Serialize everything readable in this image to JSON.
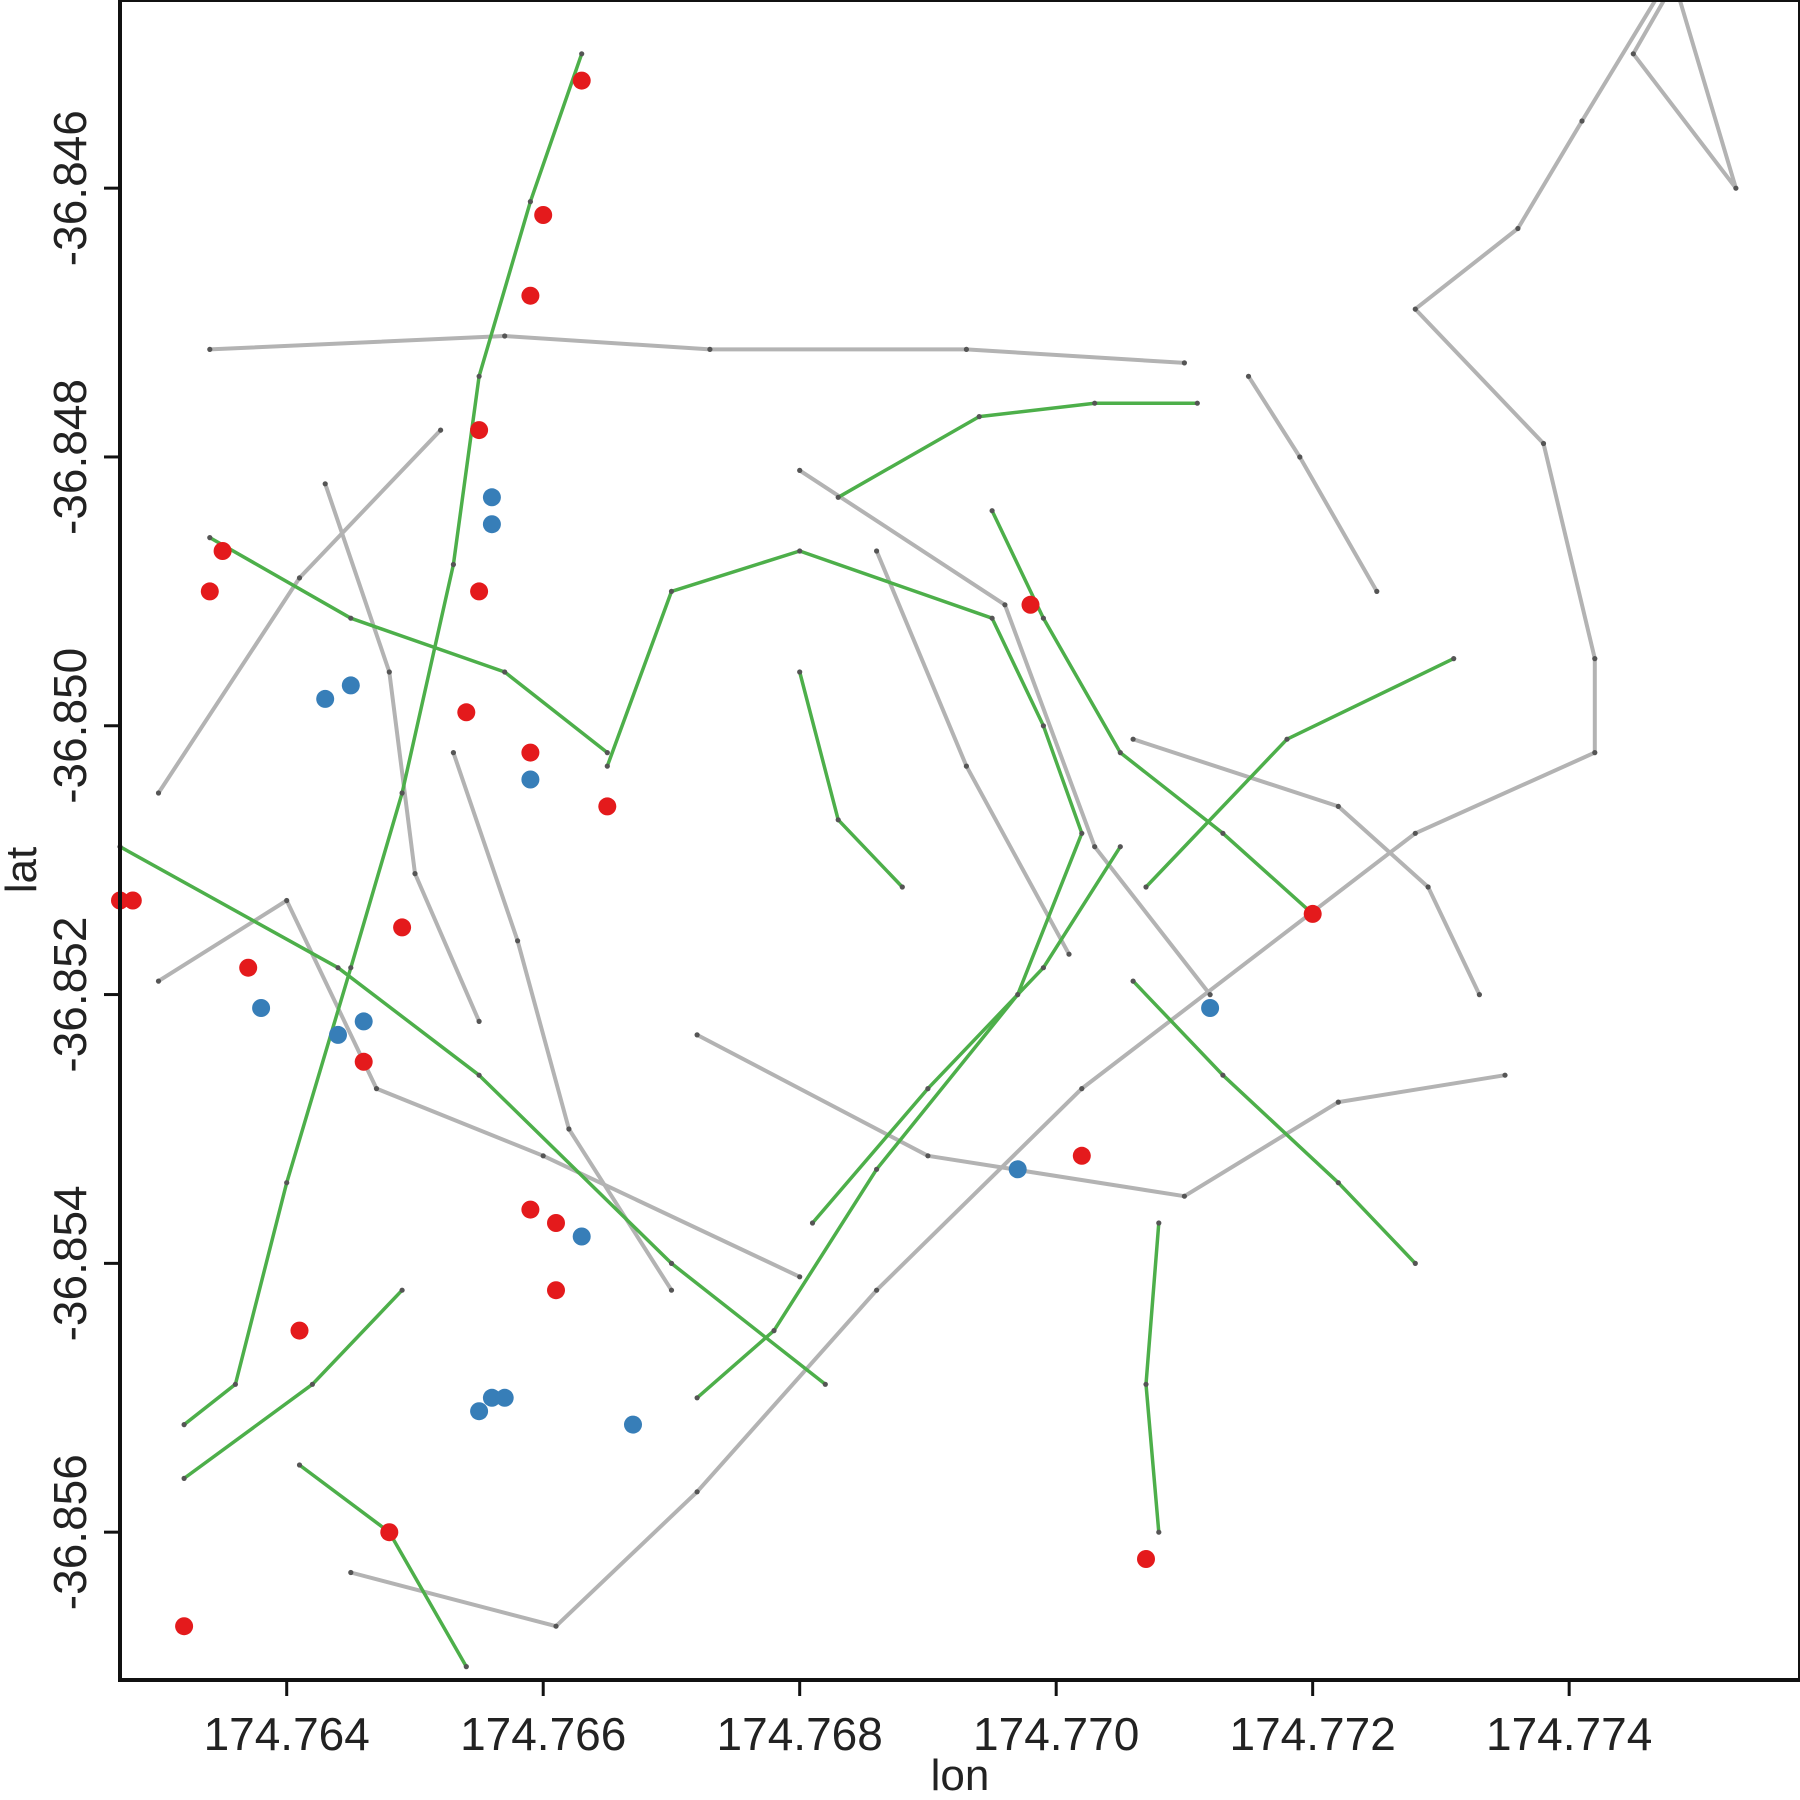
{
  "chart_data": {
    "type": "scatter",
    "title": "",
    "xlabel": "lon",
    "ylabel": "lat",
    "xlim": [
      174.7627,
      174.7758
    ],
    "ylim": [
      -36.8571,
      -36.8446
    ],
    "xticks": [
      "174.764",
      "174.766",
      "174.768",
      "174.770",
      "174.772",
      "174.774"
    ],
    "yticks": [
      "-36.846",
      "-36.848",
      "-36.850",
      "-36.852",
      "-36.854",
      "-36.856"
    ],
    "grid": false,
    "colors": {
      "road_network": "#b3b3b3",
      "route_network": "#4daf4a",
      "node": "#555555",
      "red_points": "#e41a1c",
      "blue_points": "#377eb8"
    },
    "gray_lines": [
      [
        [
          174.7645,
          -36.8563
        ],
        [
          174.7661,
          -36.8567
        ],
        [
          174.7672,
          -36.8557
        ],
        [
          174.7686,
          -36.8542
        ],
        [
          174.7702,
          -36.8527
        ],
        [
          174.7728,
          -36.8508
        ],
        [
          174.7742,
          -36.8502
        ],
        [
          174.7742,
          -36.8495
        ],
        [
          174.7738,
          -36.8479
        ],
        [
          174.7728,
          -36.8469
        ],
        [
          174.7736,
          -36.8463
        ],
        [
          174.7741,
          -36.8455
        ],
        [
          174.7748,
          -36.8444
        ],
        [
          174.7753,
          -36.846
        ],
        [
          174.7745,
          -36.845
        ],
        [
          174.7748,
          -36.8445
        ]
      ],
      [
        [
          174.7634,
          -36.8472
        ],
        [
          174.7657,
          -36.8471
        ],
        [
          174.7673,
          -36.8472
        ],
        [
          174.7693,
          -36.8472
        ],
        [
          174.771,
          -36.8473
        ]
      ],
      [
        [
          174.763,
          -36.8505
        ],
        [
          174.7641,
          -36.8489
        ],
        [
          174.7652,
          -36.8478
        ]
      ],
      [
        [
          174.763,
          -36.8519
        ],
        [
          174.764,
          -36.8513
        ],
        [
          174.7647,
          -36.8527
        ],
        [
          174.766,
          -36.8532
        ],
        [
          174.768,
          -36.8541
        ]
      ],
      [
        [
          174.7672,
          -36.8523
        ],
        [
          174.769,
          -36.8532
        ],
        [
          174.771,
          -36.8535
        ],
        [
          174.7722,
          -36.8528
        ],
        [
          174.7735,
          -36.8526
        ]
      ],
      [
        [
          174.7706,
          -36.8501
        ],
        [
          174.7722,
          -36.8506
        ],
        [
          174.7729,
          -36.8512
        ],
        [
          174.7733,
          -36.852
        ]
      ],
      [
        [
          174.768,
          -36.8481
        ],
        [
          174.7696,
          -36.8491
        ],
        [
          174.7703,
          -36.8509
        ],
        [
          174.7712,
          -36.852
        ]
      ],
      [
        [
          174.7715,
          -36.8474
        ],
        [
          174.7719,
          -36.848
        ],
        [
          174.7725,
          -36.849
        ]
      ],
      [
        [
          174.7653,
          -36.8502
        ],
        [
          174.7658,
          -36.8516
        ],
        [
          174.7662,
          -36.853
        ],
        [
          174.767,
          -36.8542
        ]
      ],
      [
        [
          174.7643,
          -36.8482
        ],
        [
          174.7648,
          -36.8496
        ],
        [
          174.765,
          -36.8511
        ],
        [
          174.7655,
          -36.8522
        ]
      ],
      [
        [
          174.7686,
          -36.8487
        ],
        [
          174.7693,
          -36.8503
        ],
        [
          174.7701,
          -36.8517
        ]
      ]
    ],
    "green_lines": [
      [
        [
          174.7663,
          -36.845
        ],
        [
          174.7659,
          -36.8461
        ],
        [
          174.7655,
          -36.8474
        ],
        [
          174.7653,
          -36.8488
        ],
        [
          174.7649,
          -36.8505
        ],
        [
          174.7645,
          -36.8518
        ],
        [
          174.764,
          -36.8534
        ],
        [
          174.7636,
          -36.8549
        ],
        [
          174.7632,
          -36.8552
        ]
      ],
      [
        [
          174.7634,
          -36.8486
        ],
        [
          174.7645,
          -36.8492
        ],
        [
          174.7657,
          -36.8496
        ],
        [
          174.7665,
          -36.8502
        ]
      ],
      [
        [
          174.7627,
          -36.8509
        ],
        [
          174.7644,
          -36.8518
        ],
        [
          174.7655,
          -36.8526
        ],
        [
          174.767,
          -36.854
        ],
        [
          174.7682,
          -36.8549
        ]
      ],
      [
        [
          174.7665,
          -36.8503
        ],
        [
          174.767,
          -36.849
        ],
        [
          174.768,
          -36.8487
        ],
        [
          174.7695,
          -36.8492
        ],
        [
          174.7699,
          -36.85
        ],
        [
          174.7702,
          -36.8508
        ],
        [
          174.7697,
          -36.852
        ],
        [
          174.7686,
          -36.8533
        ],
        [
          174.7678,
          -36.8545
        ],
        [
          174.7672,
          -36.855
        ]
      ],
      [
        [
          174.768,
          -36.8496
        ],
        [
          174.7683,
          -36.8507
        ],
        [
          174.7688,
          -36.8512
        ]
      ],
      [
        [
          174.7695,
          -36.8484
        ],
        [
          174.7699,
          -36.8492
        ],
        [
          174.7705,
          -36.8502
        ],
        [
          174.7713,
          -36.8508
        ],
        [
          174.772,
          -36.8514
        ]
      ],
      [
        [
          174.7706,
          -36.8519
        ],
        [
          174.7713,
          -36.8526
        ],
        [
          174.7722,
          -36.8534
        ],
        [
          174.7728,
          -36.854
        ]
      ],
      [
        [
          174.7708,
          -36.8537
        ],
        [
          174.7707,
          -36.8549
        ],
        [
          174.7708,
          -36.856
        ]
      ],
      [
        [
          174.7683,
          -36.8483
        ],
        [
          174.7694,
          -36.8477
        ],
        [
          174.7703,
          -36.8476
        ],
        [
          174.7711,
          -36.8476
        ]
      ],
      [
        [
          174.7707,
          -36.8512
        ],
        [
          174.7718,
          -36.8501
        ],
        [
          174.7731,
          -36.8495
        ]
      ],
      [
        [
          174.7641,
          -36.8555
        ],
        [
          174.7648,
          -36.856
        ],
        [
          174.7654,
          -36.857
        ]
      ],
      [
        [
          174.7632,
          -36.8556
        ],
        [
          174.7642,
          -36.8549
        ],
        [
          174.7649,
          -36.8542
        ]
      ],
      [
        [
          174.7681,
          -36.8537
        ],
        [
          174.769,
          -36.8527
        ],
        [
          174.7699,
          -36.8518
        ],
        [
          174.7705,
          -36.8509
        ]
      ]
    ],
    "red_points": {
      "x": [
        174.7663,
        174.766,
        174.7659,
        174.7655,
        174.7635,
        174.7634,
        174.7655,
        174.7654,
        174.7659,
        174.7665,
        174.7628,
        174.7627,
        174.7649,
        174.7637,
        174.7646,
        174.7659,
        174.7661,
        174.7661,
        174.7641,
        174.7648,
        174.7632,
        174.7698,
        174.772,
        174.7702,
        174.7707
      ],
      "y": [
        -36.8452,
        -36.8462,
        -36.8468,
        -36.8478,
        -36.8487,
        -36.849,
        -36.849,
        -36.8499,
        -36.8502,
        -36.8506,
        -36.8513,
        -36.8513,
        -36.8515,
        -36.8518,
        -36.8525,
        -36.8536,
        -36.8537,
        -36.8542,
        -36.8545,
        -36.856,
        -36.8567,
        -36.8491,
        -36.8514,
        -36.8532,
        -36.8562
      ]
    },
    "blue_points": {
      "x": [
        174.7656,
        174.7656,
        174.7643,
        174.7645,
        174.7659,
        174.7638,
        174.7644,
        174.7646,
        174.7663,
        174.7656,
        174.7657,
        174.7655,
        174.7667,
        174.7697,
        174.7712
      ],
      "y": [
        -36.8483,
        -36.8485,
        -36.8498,
        -36.8497,
        -36.8504,
        -36.8521,
        -36.8523,
        -36.8522,
        -36.8538,
        -36.855,
        -36.855,
        -36.8551,
        -36.8552,
        -36.8533,
        -36.8521
      ]
    }
  }
}
